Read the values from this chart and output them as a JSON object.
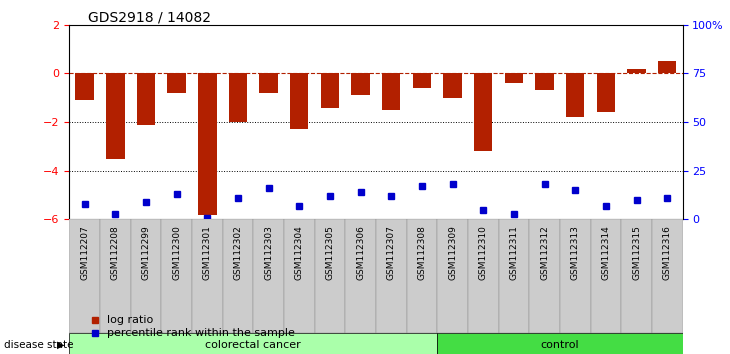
{
  "title": "GDS2918 / 14082",
  "samples": [
    "GSM112207",
    "GSM112208",
    "GSM112299",
    "GSM112300",
    "GSM112301",
    "GSM112302",
    "GSM112303",
    "GSM112304",
    "GSM112305",
    "GSM112306",
    "GSM112307",
    "GSM112308",
    "GSM112309",
    "GSM112310",
    "GSM112311",
    "GSM112312",
    "GSM112313",
    "GSM112314",
    "GSM112315",
    "GSM112316"
  ],
  "log_ratios": [
    -1.1,
    -3.5,
    -2.1,
    -0.8,
    -5.8,
    -2.0,
    -0.8,
    -2.3,
    -1.4,
    -0.9,
    -1.5,
    -0.6,
    -1.0,
    -3.2,
    -0.4,
    -0.7,
    -1.8,
    -1.6,
    0.2,
    0.5
  ],
  "percentile_ranks": [
    8,
    3,
    9,
    13,
    1,
    11,
    16,
    7,
    12,
    14,
    12,
    17,
    18,
    5,
    3,
    18,
    15,
    7,
    10,
    11
  ],
  "colorectal_count": 12,
  "control_count": 8,
  "bar_color": "#B22000",
  "dot_color": "#0000CC",
  "ylim_left": [
    -6,
    2
  ],
  "ylim_right": [
    0,
    100
  ],
  "yticks_left": [
    -6,
    -4,
    -2,
    0,
    2
  ],
  "yticks_right": [
    0,
    25,
    50,
    75,
    100
  ],
  "ytick_labels_right": [
    "0",
    "25",
    "50",
    "75",
    "100%"
  ],
  "hline_y": 0,
  "dotted_lines": [
    -2,
    -4
  ],
  "colorectal_color": "#AAFFAA",
  "control_color": "#44DD44",
  "label_colorectal": "colorectal cancer",
  "label_control": "control",
  "disease_state_label": "disease state",
  "legend_bar": "log ratio",
  "legend_dot": "percentile rank within the sample"
}
